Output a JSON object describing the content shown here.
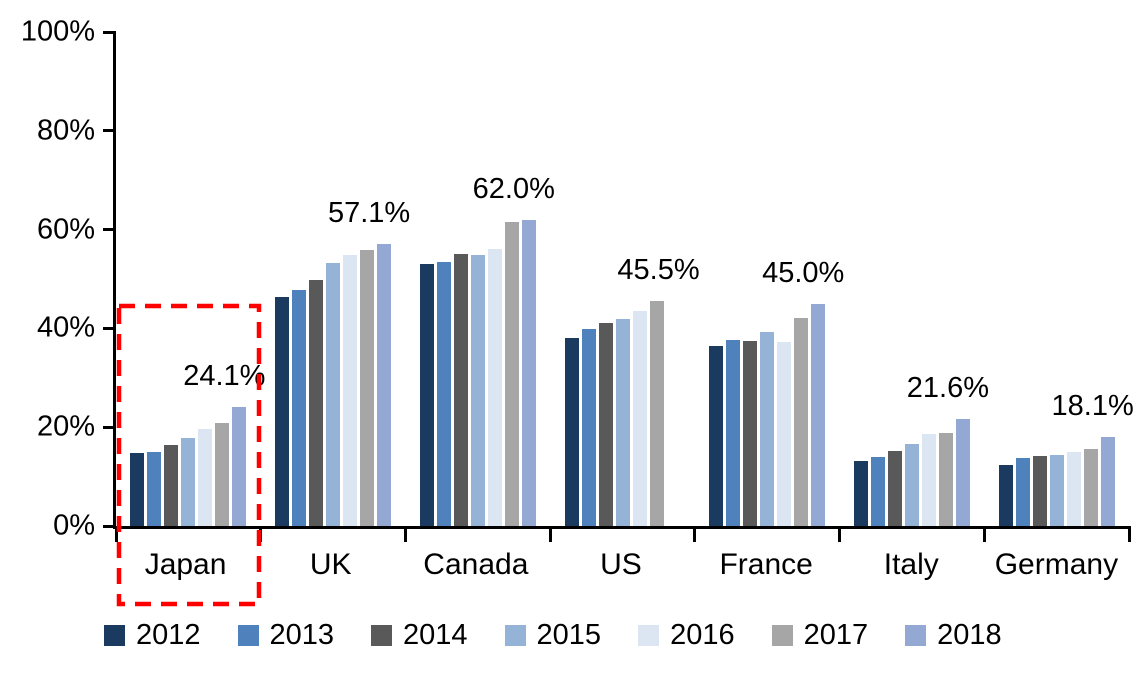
{
  "chart_data": {
    "type": "bar",
    "title": "",
    "xlabel": "",
    "ylabel": "",
    "ylim": [
      0,
      100
    ],
    "grid": false,
    "legend_position": "bottom",
    "y_tick_labels": [
      "100%",
      "80%",
      "60%",
      "40%",
      "20%",
      "0%"
    ],
    "categories": [
      "Japan",
      "UK",
      "Canada",
      "US",
      "France",
      "Italy",
      "Germany"
    ],
    "series": [
      {
        "name": "2012",
        "color": "#1b3a60",
        "values": [
          14.8,
          46.3,
          53.0,
          38.1,
          36.4,
          13.2,
          12.3
        ]
      },
      {
        "name": "2013",
        "color": "#4f81bd",
        "values": [
          14.9,
          47.7,
          53.5,
          39.9,
          37.6,
          13.9,
          13.7
        ]
      },
      {
        "name": "2014",
        "color": "#595959",
        "values": [
          16.4,
          49.8,
          55.0,
          41.1,
          37.4,
          15.1,
          14.1
        ]
      },
      {
        "name": "2015",
        "color": "#95b3d7",
        "values": [
          17.9,
          53.3,
          54.8,
          42.0,
          39.3,
          16.6,
          14.4
        ]
      },
      {
        "name": "2016",
        "color": "#dce6f2",
        "values": [
          19.7,
          54.8,
          56.1,
          43.5,
          37.3,
          18.6,
          14.9
        ]
      },
      {
        "name": "2017",
        "color": "#a6a6a6",
        "values": [
          20.9,
          55.8,
          61.5,
          45.5,
          42.2,
          18.9,
          15.6
        ]
      },
      {
        "name": "2018",
        "color": "#93a9d4",
        "values": [
          24.1,
          57.1,
          62.0,
          null,
          45.0,
          21.6,
          18.1
        ]
      }
    ],
    "data_labels": [
      "24.1%",
      "57.1%",
      "62.0%",
      "45.5%",
      "45.0%",
      "21.6%",
      "18.1%"
    ],
    "highlight": {
      "category": "Japan",
      "color": "#ff0000",
      "style": "dashed-rectangle"
    }
  }
}
